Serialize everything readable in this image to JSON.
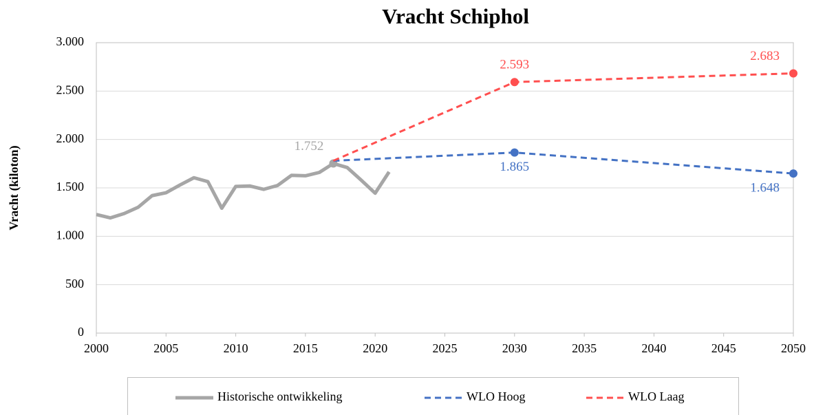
{
  "chart_data": {
    "type": "line",
    "title": "Vracht Schiphol",
    "y_label": "Vracht (kiloton)",
    "xlim": [
      2000,
      2050
    ],
    "xticks": [
      2000,
      2005,
      2010,
      2015,
      2020,
      2025,
      2030,
      2035,
      2040,
      2045,
      2050
    ],
    "ylim": [
      0,
      3000
    ],
    "yticks": [
      0,
      500,
      {
        "value": 1000,
        "label": "1.000"
      },
      {
        "value": 1500,
        "label": "1.500"
      },
      {
        "value": 2000,
        "label": "2.000"
      },
      {
        "value": 2500,
        "label": "2.500"
      },
      {
        "value": 3000,
        "label": "3.000"
      }
    ],
    "grid": true,
    "legend": "bottom",
    "series": [
      {
        "name": "Historische ontwikkeling",
        "color": "#a6a6a6",
        "dashed": false,
        "x": [
          2000,
          2001,
          2002,
          2003,
          2004,
          2005,
          2006,
          2007,
          2008,
          2009,
          2010,
          2011,
          2012,
          2013,
          2014,
          2015,
          2016,
          2017,
          2018,
          2019,
          2020,
          2021
        ],
        "values": [
          1225,
          1190,
          1235,
          1300,
          1420,
          1450,
          1530,
          1605,
          1565,
          1290,
          1515,
          1520,
          1485,
          1525,
          1630,
          1625,
          1660,
          1752,
          1710,
          1580,
          1445,
          1665
        ],
        "value_labels": [
          null,
          null,
          null,
          null,
          null,
          null,
          null,
          null,
          null,
          null,
          null,
          null,
          null,
          null,
          null,
          null,
          null,
          "1.752",
          null,
          null,
          null,
          null
        ]
      },
      {
        "name": "WLO Hoog",
        "color": "#4472c4",
        "dashed": true,
        "x": [
          2017,
          2030,
          2050
        ],
        "values": [
          1780,
          1865,
          1648
        ],
        "value_labels": [
          null,
          "1.865",
          "1.648"
        ]
      },
      {
        "name": "WLO Laag",
        "color": "#ff4f4f",
        "dashed": true,
        "x": [
          2017,
          2030,
          2050
        ],
        "values": [
          1780,
          2593,
          2683
        ],
        "value_labels": [
          null,
          "2.593",
          "2.683"
        ]
      }
    ]
  }
}
